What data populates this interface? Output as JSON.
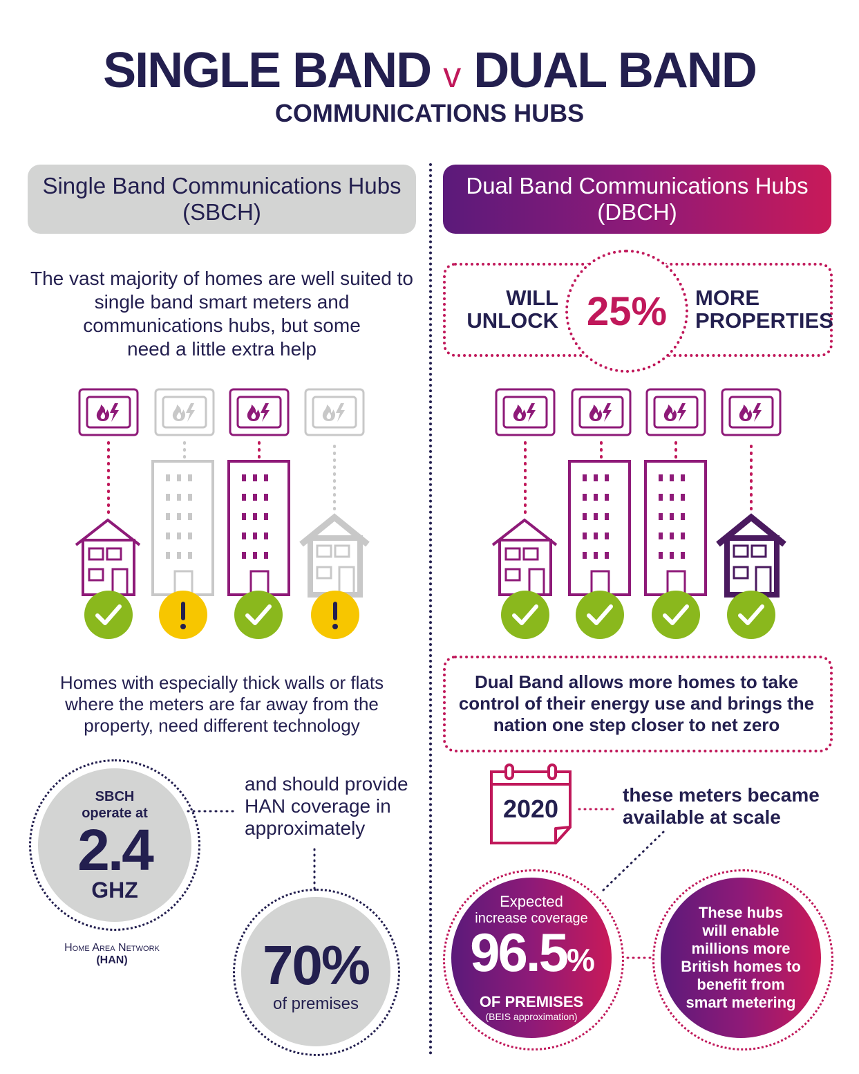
{
  "title": {
    "left": "SINGLE BAND",
    "v": "v",
    "right": "DUAL BAND",
    "subtitle": "COMMUNICATIONS HUBS"
  },
  "left": {
    "header_line1": "Single Band Communications Hubs",
    "header_line2": "(SBCH)",
    "intro_lines": [
      "The vast majority of homes are well suited to",
      "single band smart meters and",
      "communications hubs,  but some",
      "need a little extra help"
    ],
    "note_lines": [
      "Homes with especially thick walls or flats",
      "where the meters are far away from the",
      "property, need different technology"
    ],
    "freq": {
      "line1": "SBCH",
      "line2": "operate at",
      "value": "2.4",
      "unit": "GHZ"
    },
    "han_line1": "Home Area Network",
    "han_line2": "(HAN)",
    "coverage_lines": [
      "and should provide",
      "HAN coverage in",
      "approximately"
    ],
    "coverage": {
      "value": "70%",
      "label": "of premises"
    }
  },
  "right": {
    "header_line1": "Dual Band Communications Hubs",
    "header_line2": "(DBCH)",
    "unlock": {
      "left1": "WILL",
      "left2": "UNLOCK",
      "value": "25%",
      "right1": "MORE",
      "right2": "PROPERTIES"
    },
    "statement_lines": [
      "Dual Band allows more homes to take",
      "control of their energy use and brings the",
      "nation one step closer to net zero"
    ],
    "calendar_year": "2020",
    "available_lines": [
      "these meters became",
      "available at scale"
    ],
    "expected": {
      "line1": "Expected",
      "line2": "increase coverage",
      "value": "96.5",
      "pct": "%",
      "label": "OF PREMISES",
      "note": "(BEIS approximation)"
    },
    "benefit_lines": [
      "These hubs",
      "will enable",
      "millions more",
      "British homes to",
      "benefit from",
      "smart metering"
    ]
  },
  "colors": {
    "navy": "#231f4f",
    "purple": "#8e1a78",
    "magenta": "#c0185a",
    "grey": "#d3d4d3",
    "green": "#8ab81d",
    "yellow": "#f7c600"
  },
  "left_status": [
    "ok",
    "warning",
    "ok",
    "warning"
  ],
  "right_status": [
    "ok",
    "ok",
    "ok",
    "ok"
  ]
}
